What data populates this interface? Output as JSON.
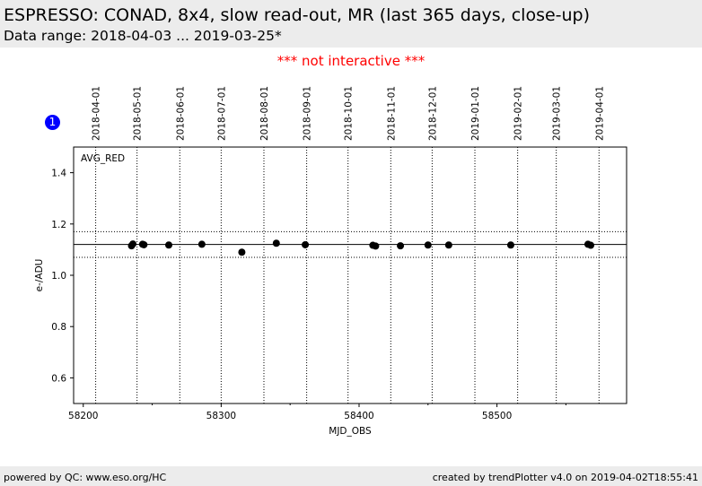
{
  "header": {
    "title": "ESPRESSO: CONAD, 8x4, slow read-out, MR (last 365 days, close-up)",
    "subtitle": "Data range: 2018-04-03 ... 2019-03-25*"
  },
  "notice": "*** not interactive ***",
  "badge": "1",
  "footer": {
    "left": "powered by QC: www.eso.org/HC",
    "right": "created by trendPlotter v4.0 on 2019-04-02T18:55:41"
  },
  "colors": {
    "header_bg": "#ececec",
    "notice": "#ff0000",
    "badge": "#0000ff",
    "points": "#000000"
  },
  "chart_data": {
    "type": "scatter",
    "panel_label": "AVG_RED",
    "xlabel": "MJD_OBS",
    "ylabel": "e-/ADU",
    "xlim": [
      58193,
      58594
    ],
    "ylim": [
      0.5,
      1.5
    ],
    "x_ticks": [
      58200,
      58300,
      58400,
      58500
    ],
    "x_tick_labels": [
      "58200",
      "58300",
      "58400",
      "58500"
    ],
    "y_ticks": [
      0.6,
      0.8,
      1.0,
      1.2,
      1.4
    ],
    "y_tick_labels": [
      "0.6",
      "0.8",
      "1.0",
      "1.2",
      "1.4"
    ],
    "reference_line": 1.12,
    "tolerance_lines": [
      1.07,
      1.17
    ],
    "date_markers": [
      {
        "label": "2018-04-01",
        "mjd": 58209
      },
      {
        "label": "2018-05-01",
        "mjd": 58239
      },
      {
        "label": "2018-06-01",
        "mjd": 58270
      },
      {
        "label": "2018-07-01",
        "mjd": 58300
      },
      {
        "label": "2018-08-01",
        "mjd": 58331
      },
      {
        "label": "2018-09-01",
        "mjd": 58362
      },
      {
        "label": "2018-10-01",
        "mjd": 58392
      },
      {
        "label": "2018-11-01",
        "mjd": 58423
      },
      {
        "label": "2018-12-01",
        "mjd": 58453
      },
      {
        "label": "2019-01-01",
        "mjd": 58484
      },
      {
        "label": "2019-02-01",
        "mjd": 58515
      },
      {
        "label": "2019-03-01",
        "mjd": 58543
      },
      {
        "label": "2019-04-01",
        "mjd": 58574
      }
    ],
    "points": [
      {
        "x": 58235.0,
        "y": 1.115
      },
      {
        "x": 58236.0,
        "y": 1.122
      },
      {
        "x": 58243.0,
        "y": 1.121
      },
      {
        "x": 58244.0,
        "y": 1.119
      },
      {
        "x": 58262.0,
        "y": 1.118
      },
      {
        "x": 58286.0,
        "y": 1.121
      },
      {
        "x": 58315.0,
        "y": 1.09
      },
      {
        "x": 58340.0,
        "y": 1.125
      },
      {
        "x": 58361.0,
        "y": 1.119
      },
      {
        "x": 58410.0,
        "y": 1.117
      },
      {
        "x": 58412.0,
        "y": 1.114
      },
      {
        "x": 58430.0,
        "y": 1.115
      },
      {
        "x": 58450.0,
        "y": 1.118
      },
      {
        "x": 58465.0,
        "y": 1.118
      },
      {
        "x": 58510.0,
        "y": 1.118
      },
      {
        "x": 58566.0,
        "y": 1.121
      },
      {
        "x": 58568.0,
        "y": 1.117
      }
    ]
  }
}
